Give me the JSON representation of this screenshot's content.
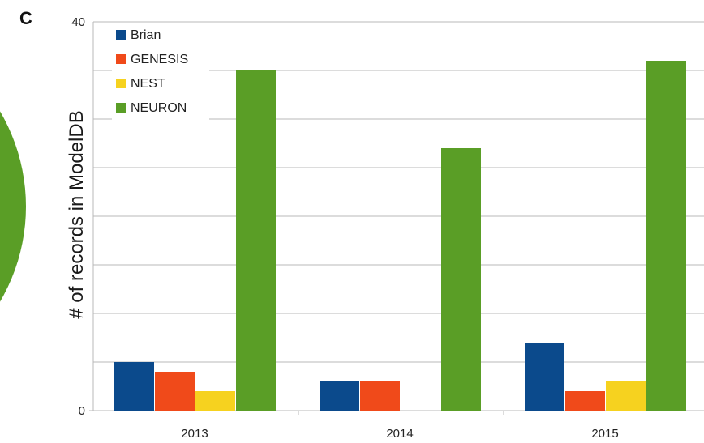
{
  "panel_letter": "C",
  "chart_data": {
    "type": "bar",
    "title": "",
    "xlabel": "",
    "ylabel": "# of records in ModelDB",
    "ylim": [
      0,
      40
    ],
    "yticks": [
      "0",
      "40"
    ],
    "grid": true,
    "legend_position": "top-left",
    "categories": [
      "2013",
      "2014",
      "2015"
    ],
    "series": [
      {
        "name": "Brian",
        "color": "#0b4a8c",
        "values": [
          5,
          3,
          7
        ]
      },
      {
        "name": "GENESIS",
        "color": "#f04a1a",
        "values": [
          4,
          3,
          2
        ]
      },
      {
        "name": "NEST",
        "color": "#f6d21f",
        "values": [
          2,
          0,
          3
        ]
      },
      {
        "name": "NEURON",
        "color": "#5a9e26",
        "values": [
          35,
          27,
          36
        ]
      }
    ]
  },
  "background_shape": {
    "description_color": "#5a9e26"
  }
}
